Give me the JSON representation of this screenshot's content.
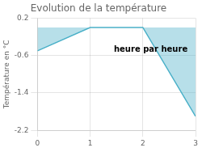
{
  "chart_data": {
    "type": "area",
    "title": "Evolution de la température",
    "ylabel": "Température en °C",
    "x": [
      0,
      1,
      2,
      3
    ],
    "values": [
      -0.5,
      0.0,
      0.0,
      -1.9
    ],
    "color": "#4ab0c8",
    "xlim": [
      0,
      3
    ],
    "xticks": [
      0,
      1,
      2,
      3
    ],
    "ylim": [
      -2.2,
      0.2
    ],
    "yticks": [
      0.2,
      -0.6,
      -1.4,
      -2.2
    ],
    "grid": true,
    "annotations": [
      {
        "text": "heure par heure",
        "x": 2.15,
        "y": -0.48
      }
    ]
  }
}
